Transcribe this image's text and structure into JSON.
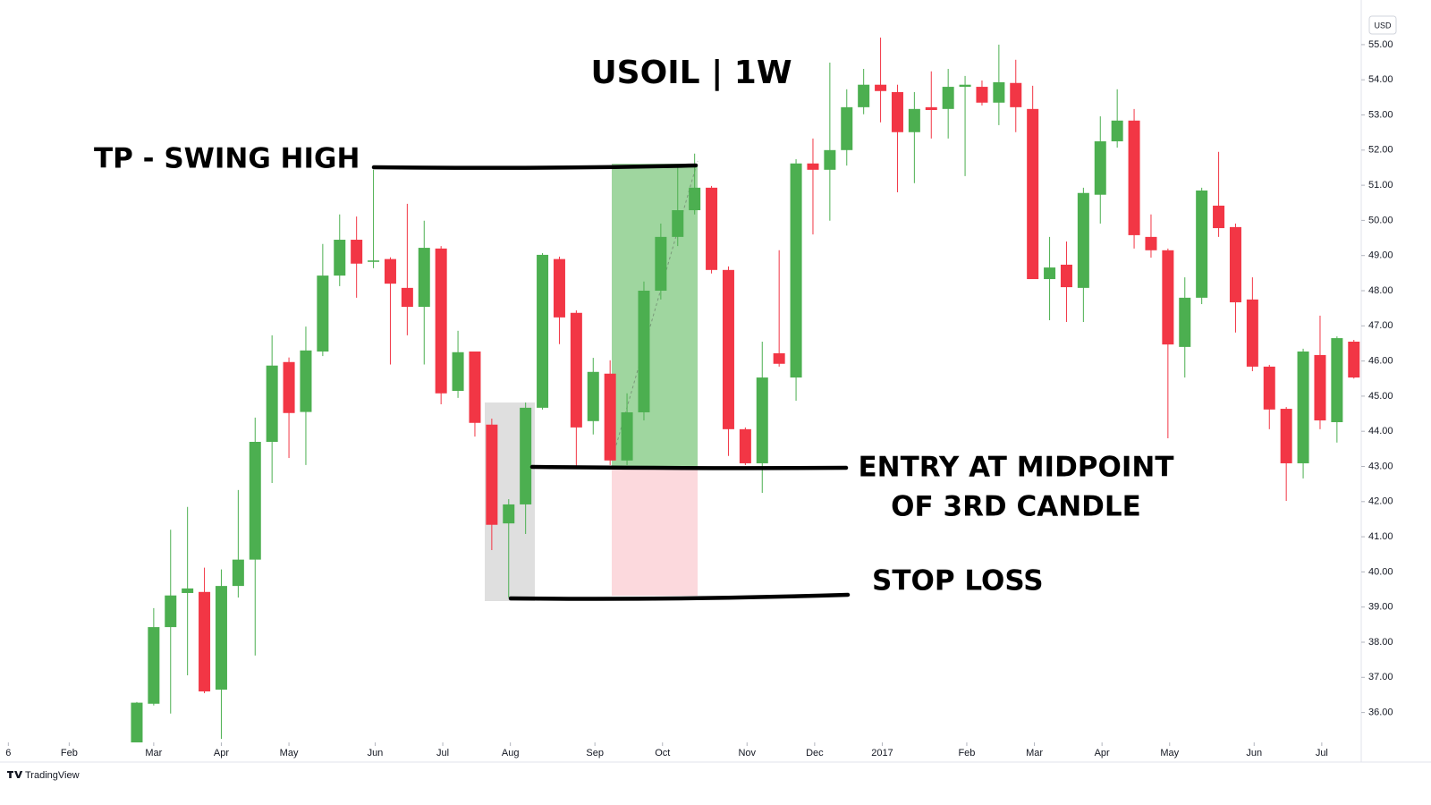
{
  "chart_data": {
    "type": "candlestick",
    "title": "USOIL | 1W",
    "annotations": [
      "TP - SWING HIGH",
      "ENTRY AT MIDPOINT",
      "OF 3RD CANDLE",
      "STOP LOSS"
    ],
    "currency": "USD",
    "brand": "TradingView",
    "up_color": "#4caf50",
    "down_color": "#f23645",
    "open": [
      35.15,
      36.25,
      38.43,
      39.4,
      39.43,
      36.65,
      39.6,
      40.35,
      43.7,
      45.97,
      44.55,
      46.27,
      48.43,
      49.45,
      48.82,
      48.9,
      48.08,
      47.54,
      49.2,
      45.15,
      46.27,
      44.19,
      41.38,
      41.92,
      44.67,
      48.9,
      47.37,
      44.29,
      45.64,
      43.17,
      44.54,
      48.0,
      49.53,
      50.29,
      50.93,
      48.59,
      44.06,
      43.09,
      46.22,
      45.53,
      51.62,
      51.44,
      52.0,
      53.22,
      53.86,
      53.65,
      52.51,
      53.22,
      53.17,
      53.8,
      53.8,
      53.35,
      53.91,
      53.17,
      48.33,
      48.74,
      48.08,
      50.73,
      52.25,
      52.84,
      49.53,
      49.15,
      46.4,
      47.8,
      50.42,
      49.81,
      47.75,
      45.84,
      44.64,
      43.09,
      46.17,
      44.26,
      46.55
    ],
    "high": [
      36.3,
      38.97,
      41.2,
      41.85,
      40.12,
      40.07,
      42.33,
      44.39,
      46.73,
      46.1,
      46.98,
      49.33,
      50.17,
      50.11,
      51.44,
      48.95,
      50.47,
      49.99,
      49.27,
      46.86,
      46.27,
      44.36,
      42.07,
      44.82,
      49.07,
      48.97,
      47.44,
      46.09,
      46.02,
      45.08,
      48.26,
      49.91,
      51.56,
      51.9,
      50.98,
      48.69,
      44.11,
      46.55,
      49.15,
      51.74,
      52.33,
      54.49,
      53.73,
      54.31,
      55.2,
      53.86,
      53.65,
      54.24,
      54.31,
      54.11,
      53.98,
      55.0,
      54.57,
      53.83,
      49.53,
      49.4,
      50.93,
      52.96,
      53.73,
      53.17,
      50.17,
      49.2,
      48.38,
      50.93,
      51.95,
      49.91,
      48.38,
      45.89,
      44.69,
      46.35,
      47.29,
      46.7,
      46.6
    ],
    "low": [
      35.15,
      36.2,
      35.97,
      37.06,
      36.55,
      35.25,
      39.27,
      37.62,
      42.53,
      43.24,
      43.04,
      46.14,
      48.13,
      47.8,
      48.64,
      45.9,
      46.73,
      45.9,
      44.77,
      44.95,
      43.85,
      40.62,
      39.27,
      41.08,
      44.62,
      46.48,
      42.99,
      43.91,
      43.04,
      43.04,
      44.31,
      47.75,
      49.27,
      50.17,
      48.49,
      43.3,
      43.04,
      42.25,
      45.84,
      44.87,
      49.6,
      49.99,
      51.56,
      53.02,
      52.79,
      50.8,
      51.06,
      52.33,
      52.33,
      51.26,
      53.27,
      52.71,
      52.51,
      48.33,
      47.16,
      47.11,
      47.11,
      49.91,
      52.07,
      49.2,
      48.94,
      43.8,
      45.53,
      47.62,
      49.53,
      46.81,
      45.71,
      44.06,
      42.02,
      42.66,
      44.06,
      43.68,
      45.5
    ],
    "close": [
      36.28,
      38.43,
      39.33,
      39.53,
      36.6,
      39.6,
      40.35,
      43.7,
      45.87,
      44.52,
      46.3,
      48.43,
      49.45,
      48.77,
      48.86,
      48.2,
      47.54,
      49.22,
      45.08,
      46.25,
      44.24,
      41.34,
      41.92,
      44.67,
      49.02,
      47.24,
      44.11,
      45.69,
      43.17,
      44.54,
      48.0,
      49.53,
      50.29,
      50.93,
      48.59,
      44.06,
      43.09,
      45.53,
      45.92,
      51.62,
      51.44,
      52.0,
      53.22,
      53.86,
      53.68,
      52.51,
      53.17,
      53.14,
      53.8,
      53.86,
      53.35,
      53.93,
      53.22,
      48.33,
      48.66,
      48.1,
      50.78,
      52.25,
      52.84,
      49.58,
      49.15,
      46.47,
      47.8,
      50.85,
      49.78,
      47.67,
      45.84,
      44.62,
      43.09,
      46.27,
      44.31,
      46.65,
      45.53
    ],
    "xlim": [
      -7.67,
      72.33
    ],
    "xticks": [
      {
        "value": -7.6,
        "label": "6"
      },
      {
        "value": -4.0,
        "label": "Feb"
      },
      {
        "value": 1.0,
        "label": "Mar"
      },
      {
        "value": 5.0,
        "label": "Apr"
      },
      {
        "value": 9.0,
        "label": "May"
      },
      {
        "value": 14.1,
        "label": "Jun"
      },
      {
        "value": 18.1,
        "label": "Jul"
      },
      {
        "value": 22.1,
        "label": "Aug"
      },
      {
        "value": 27.1,
        "label": "Sep"
      },
      {
        "value": 31.1,
        "label": "Oct"
      },
      {
        "value": 36.1,
        "label": "Nov"
      },
      {
        "value": 40.1,
        "label": "Dec"
      },
      {
        "value": 44.1,
        "label": "2017"
      },
      {
        "value": 49.1,
        "label": "Feb"
      },
      {
        "value": 53.1,
        "label": "Mar"
      },
      {
        "value": 57.1,
        "label": "Apr"
      },
      {
        "value": 61.1,
        "label": "May"
      },
      {
        "value": 66.1,
        "label": "Jun"
      },
      {
        "value": 70.1,
        "label": "Jul"
      }
    ],
    "ylim": [
      35.15,
      56.27
    ],
    "yticks": [
      {
        "value": 55,
        "label": "55.00"
      },
      {
        "value": 54,
        "label": "54.00"
      },
      {
        "value": 53,
        "label": "53.00"
      },
      {
        "value": 52,
        "label": "52.00"
      },
      {
        "value": 51,
        "label": "51.00"
      },
      {
        "value": 50,
        "label": "50.00"
      },
      {
        "value": 49,
        "label": "49.00"
      },
      {
        "value": 48,
        "label": "48.00"
      },
      {
        "value": 47,
        "label": "47.00"
      },
      {
        "value": 46,
        "label": "46.00"
      },
      {
        "value": 45,
        "label": "45.00"
      },
      {
        "value": 44,
        "label": "44.00"
      },
      {
        "value": 43,
        "label": "43.00"
      },
      {
        "value": 42,
        "label": "42.00"
      },
      {
        "value": 41,
        "label": "41.00"
      },
      {
        "value": 40,
        "label": "40.00"
      },
      {
        "value": 39,
        "label": "39.00"
      },
      {
        "value": 38,
        "label": "38.00"
      },
      {
        "value": 37,
        "label": "37.00"
      },
      {
        "value": 36,
        "label": "36.00"
      }
    ]
  }
}
